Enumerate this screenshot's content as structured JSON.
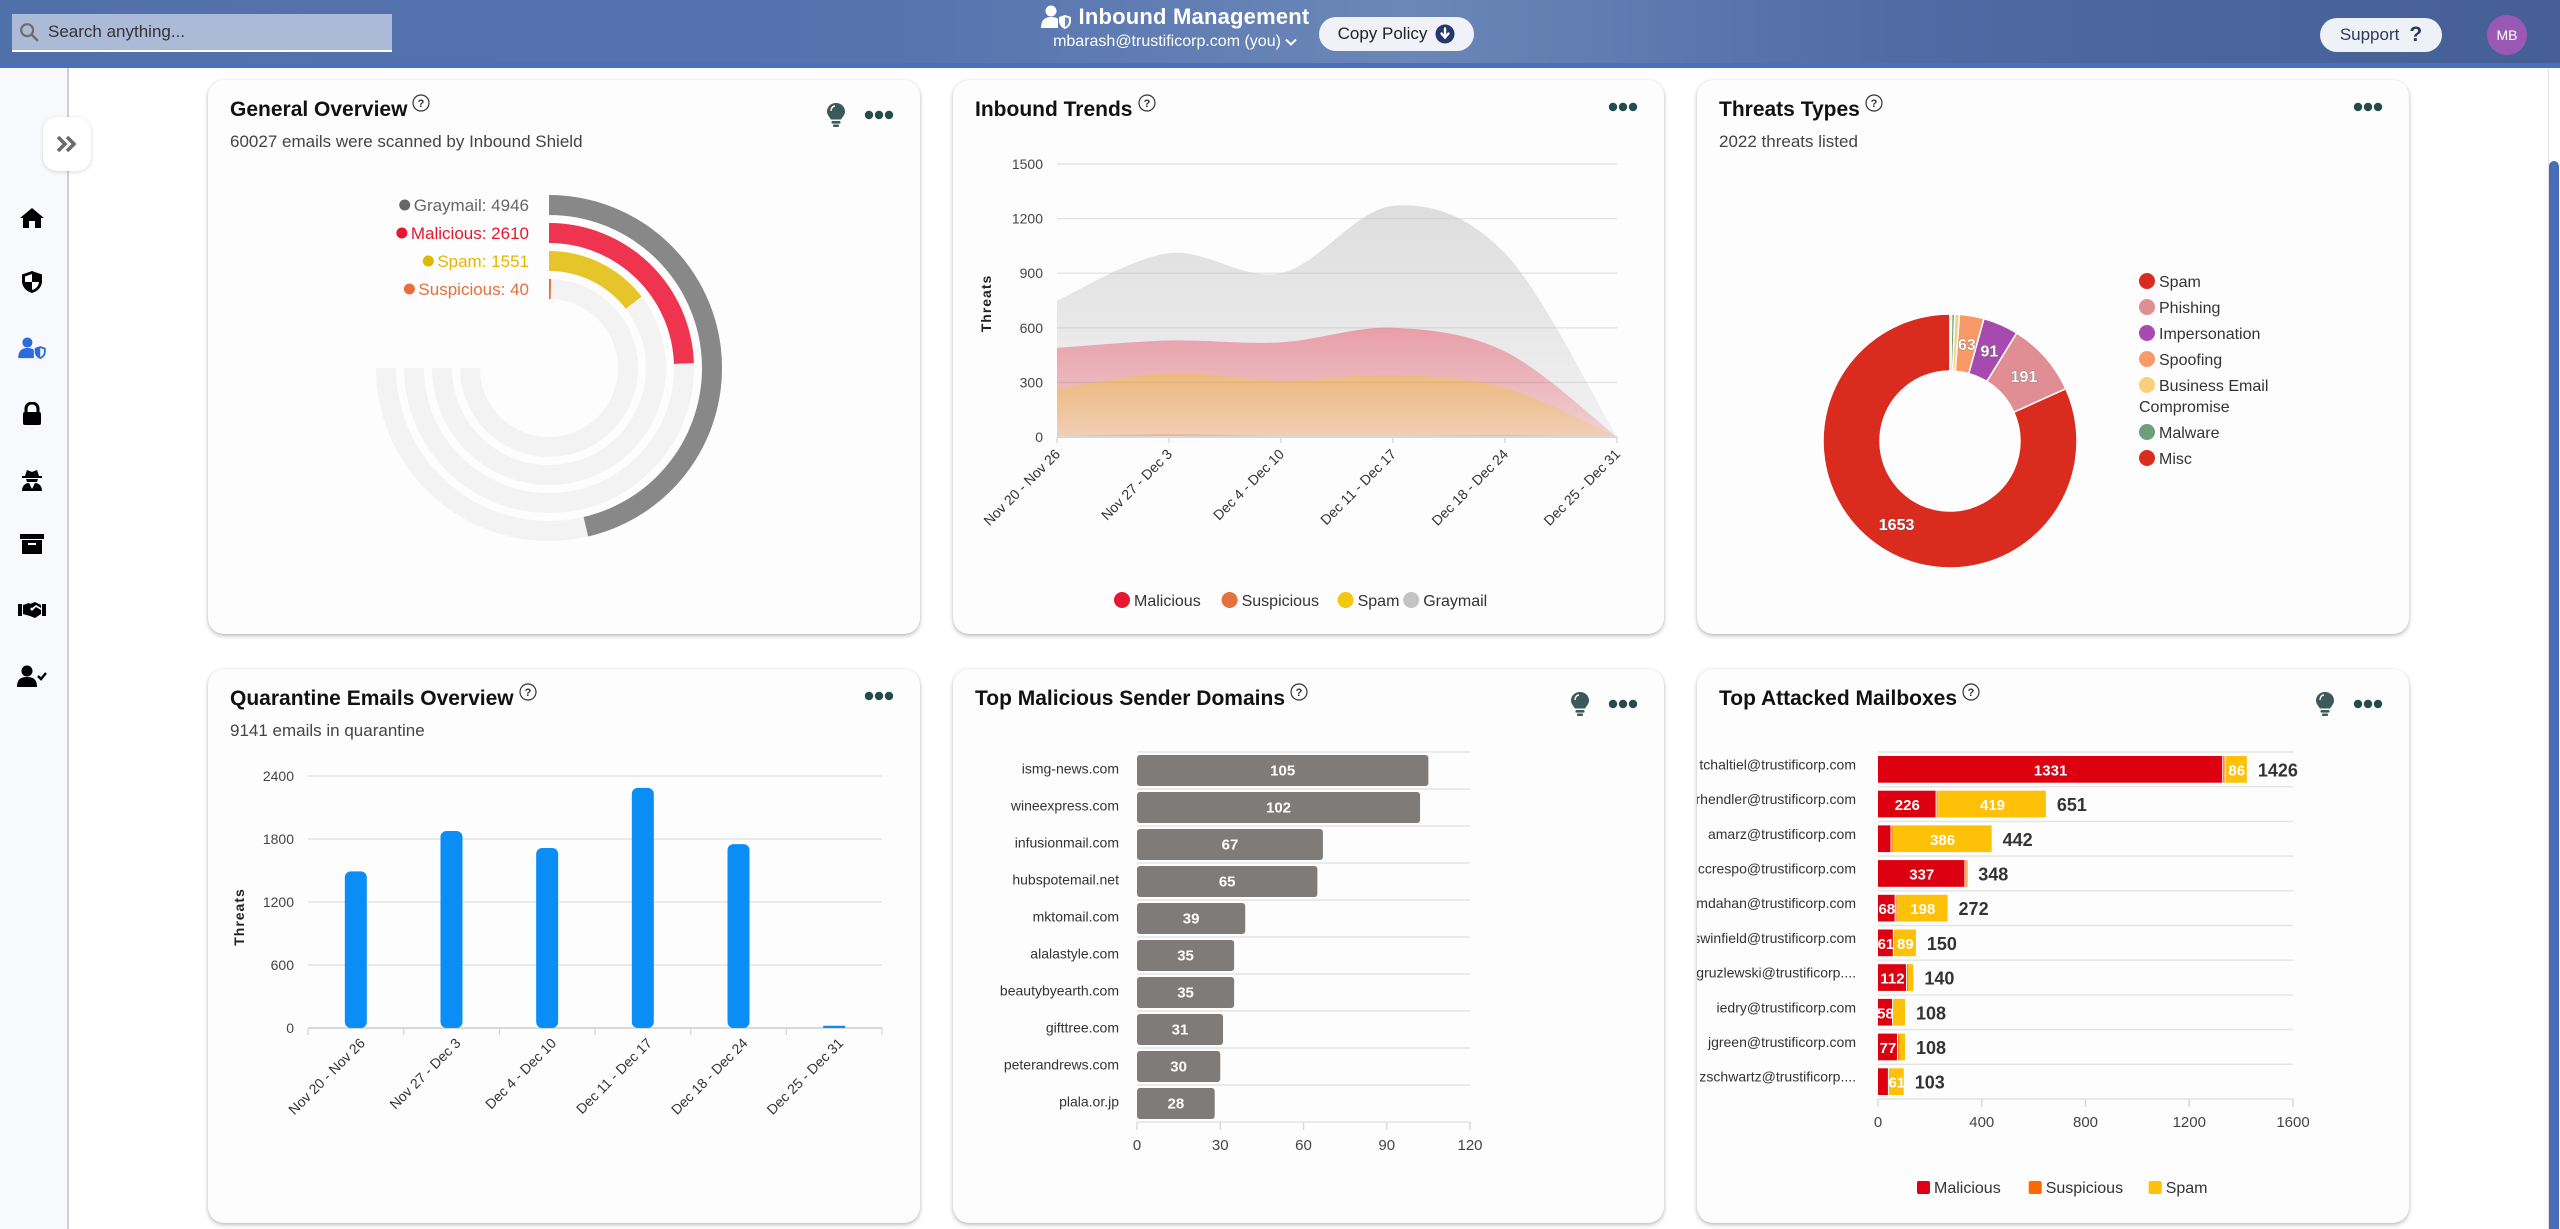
{
  "header": {
    "search_placeholder": "Search anything...",
    "app_title": "Inbound Management",
    "user_label": "mbarash@trustificorp.com (you)",
    "copy_policy_label": "Copy Policy",
    "support_label": "Support",
    "support_icon": "?",
    "avatar_initials": "MB"
  },
  "sidebar": {
    "expand_icon": "double-chevron-right",
    "items": [
      {
        "name": "home",
        "icon": "home-icon",
        "active": false
      },
      {
        "name": "security",
        "icon": "shield-icon",
        "active": false
      },
      {
        "name": "inbound",
        "icon": "user-shield-icon",
        "active": true
      },
      {
        "name": "encryption",
        "icon": "lock-icon",
        "active": false
      },
      {
        "name": "spy",
        "icon": "spy-icon",
        "active": false
      },
      {
        "name": "archive",
        "icon": "archive-icon",
        "active": false
      },
      {
        "name": "partners",
        "icon": "handshake-icon",
        "active": false
      },
      {
        "name": "users",
        "icon": "user-check-icon",
        "active": false
      }
    ]
  },
  "cards": {
    "general_overview": {
      "title": "General Overview",
      "subtitle": "60027 emails were scanned by Inbound Shield"
    },
    "inbound_trends": {
      "title": "Inbound Trends"
    },
    "threat_types": {
      "title": "Threats Types",
      "subtitle": "2022 threats listed"
    },
    "quarantine": {
      "title": "Quarantine Emails Overview",
      "subtitle": "9141 emails in quarantine"
    },
    "sender_domains": {
      "title": "Top Malicious Sender Domains"
    },
    "mailboxes": {
      "title": "Top Attacked Mailboxes"
    }
  },
  "chart_data": [
    {
      "id": "general_overview",
      "type": "radialBar",
      "max": 8000,
      "series": [
        {
          "name": "Graymail",
          "value": 4946,
          "label": "Graymail: 4946",
          "color": "#888888",
          "label_color": "#666666"
        },
        {
          "name": "Malicious",
          "value": 2610,
          "label": "Malicious: 2610",
          "color": "#ef344f",
          "label_color": "#e8162f"
        },
        {
          "name": "Spam",
          "value": 1551,
          "label": "Spam: 1551",
          "color": "#e6c52a",
          "label_color": "#e0b800"
        },
        {
          "name": "Suspicious",
          "value": 40,
          "label": "Suspicious: 40",
          "color": "#e4703d",
          "label_color": "#e4703d"
        }
      ]
    },
    {
      "id": "inbound_trends",
      "type": "area",
      "title": "Inbound Trends",
      "ylabel": "Threats",
      "ylim": [
        0,
        1500
      ],
      "yticks": [
        "0",
        "300",
        "600",
        "900",
        "1200",
        "1500"
      ],
      "categories": [
        "Nov 20 - Nov 26",
        "Nov 27 - Dec 3",
        "Dec 4 - Dec 10",
        "Dec 11 - Dec 17",
        "Dec 18 - Dec 24",
        "Dec 25 - Dec 31"
      ],
      "series": [
        {
          "name": "Graymail",
          "color": "#c4c4c4",
          "values": [
            750,
            1010,
            900,
            1270,
            1010,
            0
          ]
        },
        {
          "name": "Malicious",
          "color": "#e8162f",
          "values": [
            490,
            530,
            520,
            600,
            470,
            0
          ]
        },
        {
          "name": "Spam",
          "color": "#f2c811",
          "values": [
            265,
            350,
            310,
            340,
            270,
            0
          ]
        },
        {
          "name": "Suspicious",
          "color": "#e4703d",
          "values": [
            5,
            15,
            5,
            5,
            10,
            0
          ]
        }
      ],
      "legend": [
        "Malicious",
        "Suspicious",
        "Spam",
        "Graymail"
      ],
      "legend_position": "bottom"
    },
    {
      "id": "threat_types",
      "type": "pie",
      "total": 2022,
      "slices": [
        {
          "name": "Spam",
          "value": 1653,
          "color": "#d92c1f",
          "show_label": true
        },
        {
          "name": "Phishing",
          "value": 191,
          "color": "#e08e94",
          "show_label": true
        },
        {
          "name": "Impersonation",
          "value": 91,
          "color": "#a64ab0",
          "show_label": true
        },
        {
          "name": "Spoofing",
          "value": 63,
          "color": "#f79a68",
          "show_label": true
        },
        {
          "name": "Business Email Compromise",
          "value": 12,
          "color": "#f9cf7e",
          "show_label": false
        },
        {
          "name": "Malware",
          "value": 8,
          "color": "#6e9e7a",
          "show_label": false
        },
        {
          "name": "Misc",
          "value": 4,
          "color": "#d92c1f",
          "show_label": false
        }
      ],
      "legend_position": "right"
    },
    {
      "id": "quarantine",
      "type": "bar",
      "ylabel": "Threats",
      "ylim": [
        0,
        2400
      ],
      "yticks": [
        "0",
        "600",
        "1200",
        "1800",
        "2400"
      ],
      "categories": [
        "Nov 20 - Nov 26",
        "Nov 27 - Dec 3",
        "Dec 4 - Dec 10",
        "Dec 11 - Dec 17",
        "Dec 18 - Dec 24",
        "Dec 25 - Dec 31"
      ],
      "values": [
        1492,
        1876,
        1714,
        2287,
        1751,
        21
      ],
      "color": "#0a8ef5"
    },
    {
      "id": "sender_domains",
      "type": "bar",
      "orientation": "horizontal",
      "xlim": [
        0,
        120
      ],
      "xticks": [
        "0",
        "30",
        "60",
        "90",
        "120"
      ],
      "categories": [
        "ismg-news.com",
        "wineexpress.com",
        "infusionmail.com",
        "hubspotemail.net",
        "mktomail.com",
        "alalastyle.com",
        "beautybyearth.com",
        "gifttree.com",
        "peterandrews.com",
        "plala.or.jp"
      ],
      "values": [
        105,
        102,
        67,
        65,
        39,
        35,
        35,
        31,
        30,
        28
      ],
      "color": "#7f7b78"
    },
    {
      "id": "mailboxes",
      "type": "bar",
      "orientation": "horizontal",
      "stacked": true,
      "xlim": [
        0,
        1600
      ],
      "xticks": [
        "0",
        "400",
        "800",
        "1200",
        "1600"
      ],
      "categories": [
        "tchaltiel@trustificorp.com",
        "rhendler@trustificorp.com",
        "amarz@trustificorp.com",
        "ccrespo@trustificorp.com",
        "mdahan@trustificorp.com",
        "swinfield@trustificorp.com",
        "jgruzlewski@trustificorp....",
        "iedry@trustificorp.com",
        "jgreen@trustificorp.com",
        "zschwartz@trustificorp...."
      ],
      "series": [
        {
          "name": "Malicious",
          "color": "#dc0010",
          "values": [
            1331,
            226,
            52,
            337,
            68,
            61,
            112,
            58,
            77,
            42
          ]
        },
        {
          "name": "Suspicious",
          "color": "#ff6a00",
          "values": [
            9,
            6,
            4,
            5,
            6,
            0,
            3,
            0,
            3,
            0
          ]
        },
        {
          "name": "Spam",
          "color": "#ffc107",
          "values": [
            86,
            419,
            386,
            6,
            198,
            89,
            25,
            50,
            28,
            61
          ]
        }
      ],
      "totals": [
        1426,
        651,
        442,
        348,
        272,
        150,
        140,
        108,
        108,
        103
      ],
      "legend": [
        "Malicious",
        "Suspicious",
        "Spam"
      ],
      "legend_position": "bottom"
    }
  ]
}
